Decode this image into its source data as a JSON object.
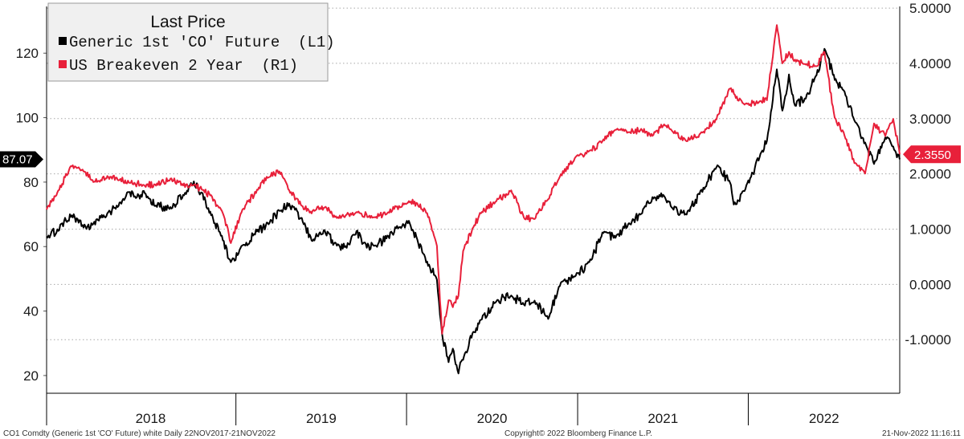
{
  "chart_data": {
    "type": "line",
    "legend": {
      "title": "Last Price",
      "placement": "top-left",
      "entries": [
        "Generic 1st 'CO' Future  (L1)",
        "US Breakeven 2 Year  (R1)"
      ]
    },
    "x_labels": [
      "2018",
      "2019",
      "2020",
      "2021",
      "2022"
    ],
    "x_range": [
      "2017-11-22",
      "2022-11-21"
    ],
    "y_left": {
      "ticks": [
        20,
        40,
        60,
        80,
        100,
        120
      ],
      "tick_labels": [
        "20",
        "40",
        "60",
        "80",
        "100",
        "120"
      ],
      "range": [
        14.5,
        134.5
      ]
    },
    "y_right": {
      "ticks": [
        -1,
        0,
        1,
        2,
        3,
        4,
        5
      ],
      "tick_labels": [
        "-1.0000",
        "0.0000",
        "1.0000",
        "2.0000",
        "3.0000",
        "4.0000",
        "5.0000"
      ],
      "range": [
        -1.97,
        5.03
      ]
    },
    "grid": "horizontal dotted",
    "last_value_tags": [
      {
        "series": "Generic 1st 'CO' Future  (L1)",
        "label": "87.07",
        "value": 87.07,
        "axis": "left",
        "color": "#000000"
      },
      {
        "series": "US Breakeven 2 Year  (R1)",
        "label": "2.3550",
        "value": 2.355,
        "axis": "right",
        "color": "#e8203a"
      }
    ],
    "series": [
      {
        "name": "Generic 1st 'CO' Future  (L1)",
        "axis": "left",
        "color": "#000000",
        "x": [
          "2017-11-22",
          "2017-12-15",
          "2018-01-15",
          "2018-02-09",
          "2018-03-02",
          "2018-04-01",
          "2018-04-25",
          "2018-05-17",
          "2018-06-01",
          "2018-06-18",
          "2018-07-12",
          "2018-08-16",
          "2018-09-10",
          "2018-10-03",
          "2018-10-22",
          "2018-11-09",
          "2018-12-04",
          "2018-12-21",
          "2019-01-15",
          "2019-02-15",
          "2019-03-12",
          "2019-04-04",
          "2019-04-25",
          "2019-05-24",
          "2019-06-12",
          "2019-07-10",
          "2019-08-05",
          "2019-08-26",
          "2019-09-16",
          "2019-09-30",
          "2019-10-24",
          "2019-11-21",
          "2019-12-20",
          "2020-01-06",
          "2020-01-24",
          "2020-02-14",
          "2020-03-06",
          "2020-03-17",
          "2020-03-31",
          "2020-04-09",
          "2020-04-21",
          "2020-05-01",
          "2020-05-21",
          "2020-06-08",
          "2020-07-09",
          "2020-08-12",
          "2020-09-08",
          "2020-10-01",
          "2020-10-30",
          "2020-11-24",
          "2020-12-28",
          "2021-01-26",
          "2021-02-23",
          "2021-03-23",
          "2021-04-19",
          "2021-05-17",
          "2021-06-10",
          "2021-07-05",
          "2021-07-23",
          "2021-08-20",
          "2021-09-27",
          "2021-10-25",
          "2021-11-23",
          "2021-12-01",
          "2021-12-24",
          "2022-01-25",
          "2022-02-10",
          "2022-03-03",
          "2022-03-15",
          "2022-03-29",
          "2022-04-11",
          "2022-05-02",
          "2022-05-27",
          "2022-06-13",
          "2022-07-05",
          "2022-07-28",
          "2022-08-16",
          "2022-09-08",
          "2022-09-27",
          "2022-10-21",
          "2022-11-07",
          "2022-11-21"
        ],
        "values": [
          63,
          65,
          70,
          66,
          67,
          70,
          73,
          77,
          75,
          77,
          73,
          72,
          76,
          80,
          76,
          70,
          62,
          55,
          60,
          65,
          67,
          71,
          73,
          68,
          62,
          65,
          60,
          60,
          65,
          61,
          60,
          63,
          66,
          68,
          62,
          55,
          50,
          33,
          24,
          28,
          21,
          25,
          33,
          37,
          43,
          45,
          42,
          43,
          38,
          48,
          51,
          55,
          64,
          63,
          67,
          70,
          75,
          76,
          72,
          70,
          78,
          85,
          80,
          73,
          77,
          88,
          93,
          115,
          102,
          113,
          104,
          106,
          113,
          121,
          112,
          107,
          99,
          92,
          86,
          94,
          91,
          87.07
        ]
      },
      {
        "name": "US Breakeven 2 Year  (R1)",
        "axis": "right",
        "color": "#e8203a",
        "x": [
          "2017-11-22",
          "2017-12-15",
          "2018-01-15",
          "2018-02-09",
          "2018-03-02",
          "2018-04-01",
          "2018-04-25",
          "2018-05-17",
          "2018-06-18",
          "2018-07-12",
          "2018-08-16",
          "2018-09-10",
          "2018-10-03",
          "2018-10-22",
          "2018-11-09",
          "2018-12-04",
          "2018-12-21",
          "2019-01-15",
          "2019-02-15",
          "2019-03-12",
          "2019-04-04",
          "2019-04-25",
          "2019-05-24",
          "2019-06-12",
          "2019-07-10",
          "2019-08-05",
          "2019-09-16",
          "2019-10-24",
          "2019-11-21",
          "2019-12-20",
          "2020-01-06",
          "2020-01-24",
          "2020-02-14",
          "2020-03-06",
          "2020-03-17",
          "2020-03-31",
          "2020-04-09",
          "2020-04-21",
          "2020-05-01",
          "2020-05-21",
          "2020-06-08",
          "2020-07-09",
          "2020-08-12",
          "2020-09-08",
          "2020-10-01",
          "2020-10-30",
          "2020-11-24",
          "2020-12-28",
          "2021-01-26",
          "2021-02-23",
          "2021-03-23",
          "2021-04-19",
          "2021-05-17",
          "2021-06-10",
          "2021-07-05",
          "2021-08-20",
          "2021-09-27",
          "2021-10-25",
          "2021-11-23",
          "2021-12-24",
          "2022-01-25",
          "2022-02-10",
          "2022-03-03",
          "2022-03-15",
          "2022-03-29",
          "2022-04-11",
          "2022-05-02",
          "2022-05-27",
          "2022-06-13",
          "2022-07-05",
          "2022-07-28",
          "2022-08-16",
          "2022-09-08",
          "2022-09-27",
          "2022-10-21",
          "2022-11-07",
          "2022-11-21"
        ],
        "values": [
          1.35,
          1.65,
          2.15,
          2.05,
          1.85,
          1.95,
          1.9,
          1.85,
          1.8,
          1.8,
          1.9,
          1.8,
          1.8,
          1.7,
          1.6,
          1.3,
          0.75,
          1.35,
          1.7,
          1.95,
          2.05,
          1.7,
          1.4,
          1.3,
          1.4,
          1.2,
          1.3,
          1.2,
          1.3,
          1.4,
          1.5,
          1.45,
          1.3,
          0.7,
          -0.9,
          -0.3,
          -0.4,
          -0.2,
          0.6,
          1.0,
          1.3,
          1.5,
          1.7,
          1.2,
          1.2,
          1.55,
          1.95,
          2.3,
          2.4,
          2.6,
          2.8,
          2.75,
          2.8,
          2.7,
          2.9,
          2.6,
          2.75,
          3.0,
          3.55,
          3.25,
          3.3,
          3.35,
          4.7,
          4.0,
          4.2,
          4.05,
          4.0,
          3.95,
          4.2,
          3.0,
          2.65,
          2.2,
          2.0,
          2.9,
          2.7,
          3.0,
          2.355
        ]
      }
    ]
  },
  "footer": {
    "left": "CO1 Comdty (Generic 1st 'CO' Future) white  Daily 22NOV2017-21NOV2022",
    "center": "Copyright© 2022 Bloomberg Finance L.P.",
    "right": "21-Nov-2022 11:16:11"
  }
}
